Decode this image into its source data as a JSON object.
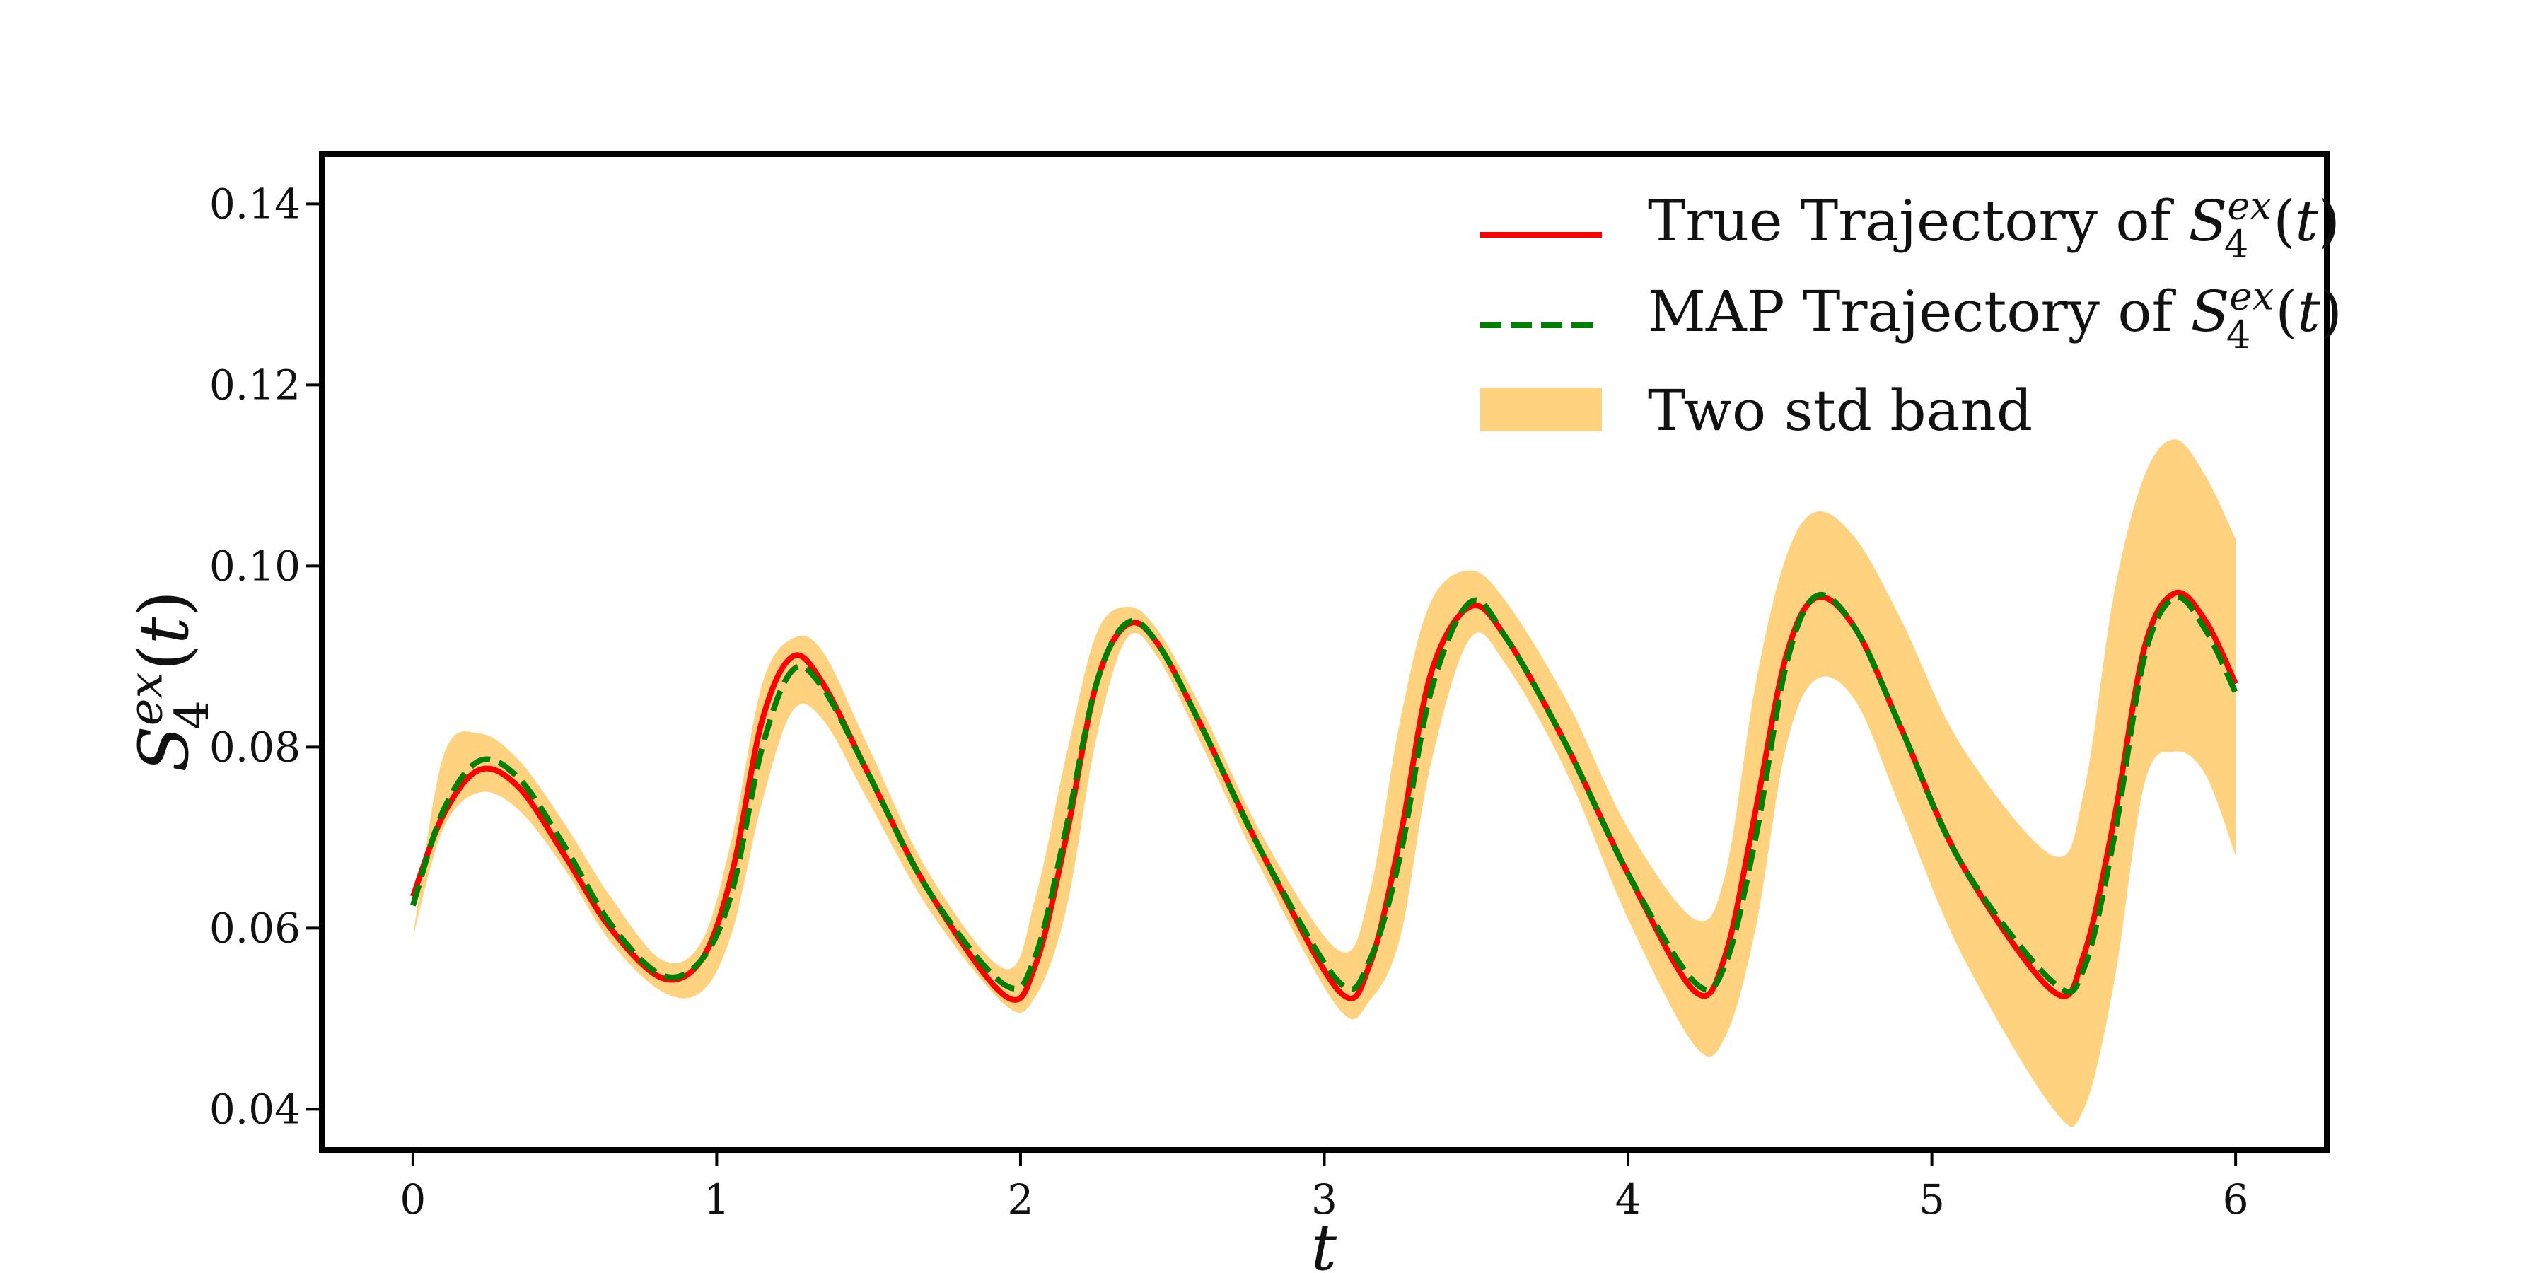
{
  "chart_data": {
    "type": "line",
    "title": "",
    "xlabel": "t",
    "ylabel": "S_4^{ex}(t)",
    "ylabel_parts": {
      "base": "S",
      "sub": "4",
      "sup": "ex",
      "tail": "(t)"
    },
    "xlim": [
      -0.3,
      6.3
    ],
    "ylim": [
      0.0355,
      0.1455
    ],
    "x_ticks": [
      0,
      1,
      2,
      3,
      4,
      5,
      6
    ],
    "x_tick_labels": [
      "0",
      "1",
      "2",
      "3",
      "4",
      "5",
      "6"
    ],
    "y_ticks": [
      0.04,
      0.06,
      0.08,
      0.1,
      0.12,
      0.14
    ],
    "y_tick_labels": [
      "0.04",
      "0.06",
      "0.08",
      "0.10",
      "0.12",
      "0.14"
    ],
    "grid": false,
    "legend_position": "top-right",
    "legend": [
      {
        "label_prefix": "True Trajectory of ",
        "label_math": {
          "base": "S",
          "sub": "4",
          "sup": "ex",
          "tail": "(t)"
        },
        "style": "solid",
        "color": "#ff0000"
      },
      {
        "label_prefix": "MAP Trajectory of ",
        "label_math": {
          "base": "S",
          "sub": "4",
          "sup": "ex",
          "tail": "(t)"
        },
        "style": "dashed",
        "color": "#007f00"
      },
      {
        "label_prefix": "Two std band",
        "label_math": null,
        "style": "band",
        "color": "#ffd280"
      }
    ],
    "x": [
      0,
      0.1,
      0.22,
      0.35,
      0.5,
      0.65,
      0.82,
      0.95,
      1.05,
      1.15,
      1.25,
      1.35,
      1.5,
      1.7,
      1.95,
      2.05,
      2.15,
      2.25,
      2.35,
      2.45,
      2.6,
      2.8,
      3.05,
      3.15,
      3.25,
      3.35,
      3.48,
      3.6,
      3.8,
      4.0,
      4.22,
      4.32,
      4.42,
      4.52,
      4.62,
      4.75,
      4.9,
      5.1,
      5.4,
      5.5,
      5.6,
      5.7,
      5.8,
      5.9,
      6.0
    ],
    "series": [
      {
        "name": "True Trajectory of S_4^{ex}(t)",
        "color": "#ff0000",
        "style": "solid",
        "values": [
          0.0635,
          0.0725,
          0.0775,
          0.0755,
          0.068,
          0.06,
          0.0545,
          0.0565,
          0.066,
          0.083,
          0.09,
          0.087,
          0.077,
          0.064,
          0.0525,
          0.056,
          0.07,
          0.087,
          0.0935,
          0.0915,
          0.082,
          0.068,
          0.053,
          0.056,
          0.07,
          0.088,
          0.0955,
          0.092,
          0.08,
          0.066,
          0.053,
          0.057,
          0.073,
          0.09,
          0.0965,
          0.093,
          0.082,
          0.067,
          0.053,
          0.057,
          0.072,
          0.091,
          0.097,
          0.094,
          0.087
        ]
      },
      {
        "name": "MAP Trajectory of S_4^{ex}(t)",
        "color": "#007f00",
        "style": "dashed",
        "values": [
          0.0625,
          0.073,
          0.0785,
          0.0765,
          0.069,
          0.0605,
          0.0548,
          0.0565,
          0.064,
          0.08,
          0.0885,
          0.0865,
          0.077,
          0.064,
          0.0537,
          0.057,
          0.071,
          0.087,
          0.0937,
          0.0915,
          0.082,
          0.068,
          0.054,
          0.0565,
          0.068,
          0.086,
          0.096,
          0.092,
          0.08,
          0.066,
          0.054,
          0.056,
          0.07,
          0.089,
          0.0967,
          0.093,
          0.082,
          0.067,
          0.054,
          0.0555,
          0.07,
          0.09,
          0.0965,
          0.093,
          0.086
        ]
      }
    ],
    "band": {
      "name": "Two std band",
      "color": "#ffd280",
      "upper": [
        0.059,
        0.079,
        0.0815,
        0.0785,
        0.0715,
        0.0635,
        0.0565,
        0.0585,
        0.07,
        0.087,
        0.092,
        0.0905,
        0.08,
        0.066,
        0.0555,
        0.0635,
        0.079,
        0.0925,
        0.0955,
        0.093,
        0.084,
        0.07,
        0.0575,
        0.064,
        0.083,
        0.096,
        0.0995,
        0.096,
        0.085,
        0.071,
        0.061,
        0.066,
        0.087,
        0.101,
        0.106,
        0.103,
        0.094,
        0.08,
        0.068,
        0.075,
        0.097,
        0.11,
        0.114,
        0.11,
        0.103
      ],
      "lower": [
        0.059,
        0.071,
        0.075,
        0.073,
        0.0665,
        0.0585,
        0.053,
        0.053,
        0.0595,
        0.074,
        0.084,
        0.083,
        0.074,
        0.062,
        0.0515,
        0.0525,
        0.062,
        0.081,
        0.092,
        0.09,
        0.08,
        0.066,
        0.051,
        0.052,
        0.059,
        0.078,
        0.092,
        0.089,
        0.077,
        0.061,
        0.047,
        0.048,
        0.06,
        0.08,
        0.0875,
        0.085,
        0.073,
        0.057,
        0.04,
        0.04,
        0.054,
        0.076,
        0.0795,
        0.077,
        0.068
      ]
    }
  }
}
